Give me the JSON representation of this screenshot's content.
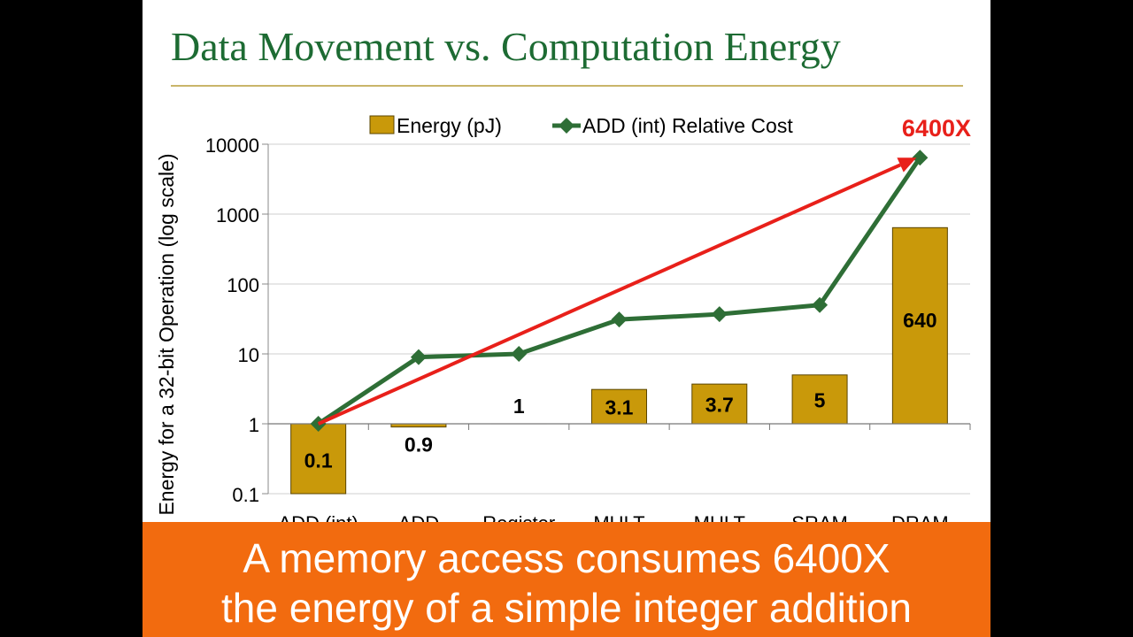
{
  "slide": {
    "title": "Data Movement vs. Computation Energy",
    "banner_line1": "A memory access consumes 6400X",
    "banner_line2": "the energy of a simple integer addition",
    "banner_color": "#f26b0f",
    "title_color": "#1d6b33"
  },
  "chart_data": {
    "type": "bar",
    "log_scale": true,
    "ylim": [
      0.1,
      10000
    ],
    "ylabel": "Energy for a 32-bit Operation (log scale)",
    "yticks": [
      "0.1",
      "1",
      "10",
      "100",
      "1000",
      "10000"
    ],
    "categories": [
      "ADD (int)",
      "ADD",
      "Register",
      "MULT",
      "MULT",
      "SRAM",
      "DRAM"
    ],
    "grid": true,
    "legend_position": "top",
    "series": [
      {
        "name": "Energy (pJ)",
        "type": "bar",
        "color": "#c9990a",
        "values": [
          0.1,
          0.9,
          1,
          3.1,
          3.7,
          5,
          640
        ],
        "labels": [
          "0.1",
          "0.9",
          "1",
          "3.1",
          "3.7",
          "5",
          "640"
        ]
      },
      {
        "name": "ADD (int) Relative Cost",
        "type": "line",
        "marker": "diamond",
        "color": "#2e6e36",
        "values": [
          1,
          9,
          10,
          31,
          37,
          50,
          6400
        ]
      }
    ],
    "annotations": [
      {
        "text": "6400X",
        "color": "#e8201a",
        "arrow_from": [
          0,
          1
        ],
        "arrow_to": [
          6,
          6400
        ]
      }
    ]
  }
}
